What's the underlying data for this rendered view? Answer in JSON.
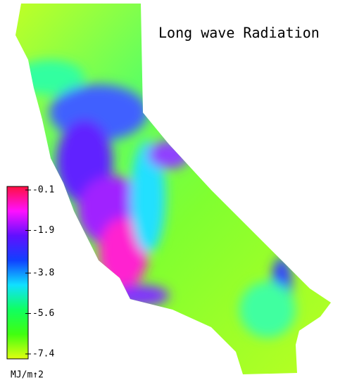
{
  "title": "Long wave Radiation",
  "colorbar": {
    "ticks": [
      -0.1,
      -1.9,
      -3.8,
      -5.6,
      -7.4
    ],
    "unit": "MJ/m↑2",
    "colors": [
      "#ff1040",
      "#ff10ff",
      "#6010ff",
      "#1040ff",
      "#10e0ff",
      "#10ff60",
      "#40ff10",
      "#e0ff10"
    ]
  }
}
